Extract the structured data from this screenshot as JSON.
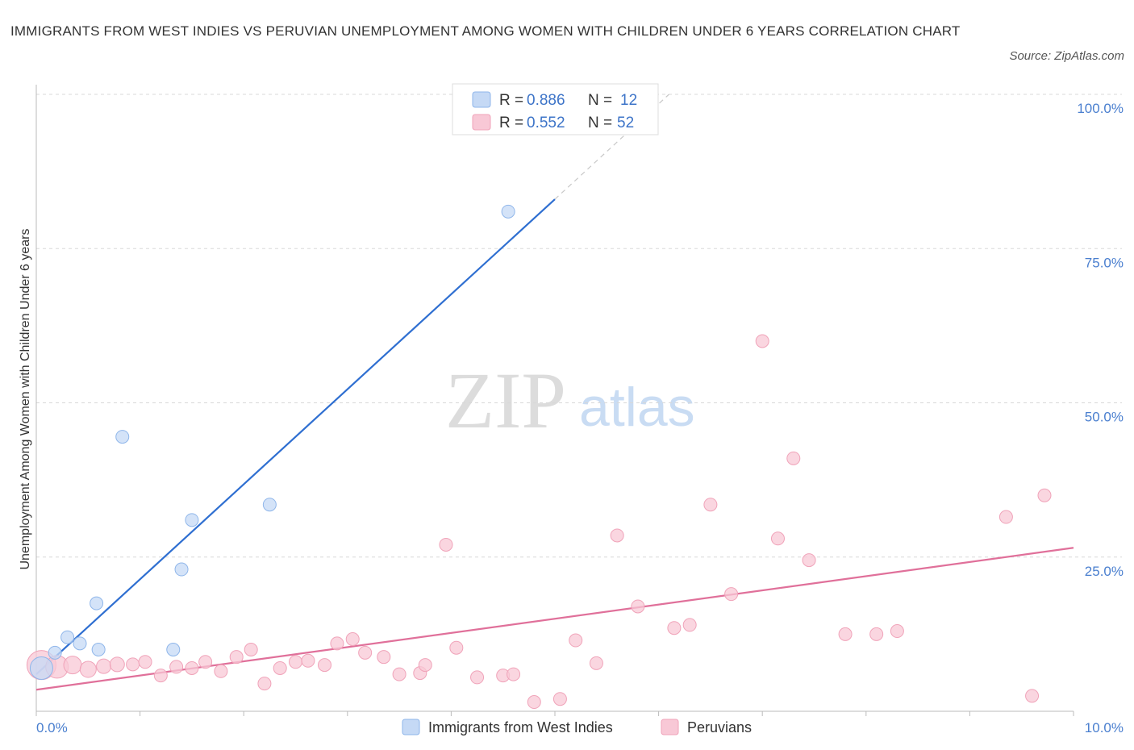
{
  "header": {
    "title": "IMMIGRANTS FROM WEST INDIES VS PERUVIAN UNEMPLOYMENT AMONG WOMEN WITH CHILDREN UNDER 6 YEARS CORRELATION CHART",
    "source": "Source: ZipAtlas.com"
  },
  "watermark": {
    "zip": "ZIP",
    "atlas": "atlas"
  },
  "chart_data": {
    "type": "scatter",
    "title": "IMMIGRANTS FROM WEST INDIES VS PERUVIAN UNEMPLOYMENT AMONG WOMEN WITH CHILDREN UNDER 6 YEARS CORRELATION CHART",
    "xlabel": "",
    "ylabel": "Unemployment Among Women with Children Under 6 years",
    "xlim": [
      0,
      10
    ],
    "ylim": [
      0,
      100
    ],
    "x_tick_labels": {
      "left": "0.0%",
      "right": "10.0%"
    },
    "y_ticks": [
      {
        "value": 100,
        "label": "100.0%"
      },
      {
        "value": 75,
        "label": "75.0%"
      },
      {
        "value": 50,
        "label": "50.0%"
      },
      {
        "value": 25,
        "label": "25.0%"
      }
    ],
    "grid": true,
    "legend": {
      "placement": "top-center",
      "entries": [
        {
          "r_label": "R =",
          "r_value": "0.886",
          "n_label": "N =",
          "n_value": "12"
        },
        {
          "r_label": "R =",
          "r_value": "0.552",
          "n_label": "N =",
          "n_value": "52"
        }
      ]
    },
    "series": [
      {
        "name": "Immigrants from West Indies",
        "color": "#8fb6ea",
        "fill": "#c5d9f5",
        "line_color": "#2f6fd1",
        "trend": {
          "x0": 0.0,
          "y0": 6.0,
          "x1": 5.0,
          "y1": 83.0,
          "dash_to_x": 6.1,
          "dash_to_y": 100.0
        },
        "points": [
          {
            "x": 0.05,
            "y": 7.0,
            "size": 14
          },
          {
            "x": 0.18,
            "y": 9.5,
            "size": 8
          },
          {
            "x": 0.3,
            "y": 12.0,
            "size": 8
          },
          {
            "x": 0.42,
            "y": 11.0,
            "size": 8
          },
          {
            "x": 0.58,
            "y": 17.5,
            "size": 8
          },
          {
            "x": 0.6,
            "y": 10.0,
            "size": 8
          },
          {
            "x": 0.83,
            "y": 44.5,
            "size": 8
          },
          {
            "x": 1.32,
            "y": 10.0,
            "size": 8
          },
          {
            "x": 1.4,
            "y": 23.0,
            "size": 8
          },
          {
            "x": 1.5,
            "y": 31.0,
            "size": 8
          },
          {
            "x": 2.25,
            "y": 33.5,
            "size": 8
          },
          {
            "x": 4.55,
            "y": 81.0,
            "size": 8
          }
        ]
      },
      {
        "name": "Peruvians",
        "color": "#f0a3b9",
        "fill": "#f8c8d6",
        "line_color": "#e0709a",
        "trend": {
          "x0": 0.0,
          "y0": 3.5,
          "x1": 10.0,
          "y1": 26.5
        },
        "points": [
          {
            "x": 0.05,
            "y": 7.5,
            "size": 18
          },
          {
            "x": 0.2,
            "y": 7.2,
            "size": 14
          },
          {
            "x": 0.35,
            "y": 7.5,
            "size": 11
          },
          {
            "x": 0.5,
            "y": 6.8,
            "size": 10
          },
          {
            "x": 0.65,
            "y": 7.3,
            "size": 9
          },
          {
            "x": 0.78,
            "y": 7.6,
            "size": 9
          },
          {
            "x": 0.93,
            "y": 7.6,
            "size": 8
          },
          {
            "x": 1.05,
            "y": 8.0,
            "size": 8
          },
          {
            "x": 1.2,
            "y": 5.8,
            "size": 8
          },
          {
            "x": 1.35,
            "y": 7.2,
            "size": 8
          },
          {
            "x": 1.5,
            "y": 7.0,
            "size": 8
          },
          {
            "x": 1.63,
            "y": 8.0,
            "size": 8
          },
          {
            "x": 1.78,
            "y": 6.5,
            "size": 8
          },
          {
            "x": 1.93,
            "y": 8.8,
            "size": 8
          },
          {
            "x": 2.07,
            "y": 10.0,
            "size": 8
          },
          {
            "x": 2.2,
            "y": 4.5,
            "size": 8
          },
          {
            "x": 2.35,
            "y": 7.0,
            "size": 8
          },
          {
            "x": 2.5,
            "y": 8.0,
            "size": 8
          },
          {
            "x": 2.62,
            "y": 8.2,
            "size": 8
          },
          {
            "x": 2.78,
            "y": 7.5,
            "size": 8
          },
          {
            "x": 2.9,
            "y": 11.0,
            "size": 8
          },
          {
            "x": 3.05,
            "y": 11.7,
            "size": 8
          },
          {
            "x": 3.17,
            "y": 9.5,
            "size": 8
          },
          {
            "x": 3.35,
            "y": 8.8,
            "size": 8
          },
          {
            "x": 3.5,
            "y": 6.0,
            "size": 8
          },
          {
            "x": 3.7,
            "y": 6.2,
            "size": 8
          },
          {
            "x": 3.75,
            "y": 7.5,
            "size": 8
          },
          {
            "x": 3.95,
            "y": 27.0,
            "size": 8
          },
          {
            "x": 4.05,
            "y": 10.3,
            "size": 8
          },
          {
            "x": 4.25,
            "y": 5.5,
            "size": 8
          },
          {
            "x": 4.5,
            "y": 5.8,
            "size": 8
          },
          {
            "x": 4.6,
            "y": 6.0,
            "size": 8
          },
          {
            "x": 4.8,
            "y": 1.5,
            "size": 8
          },
          {
            "x": 5.05,
            "y": 2.0,
            "size": 8
          },
          {
            "x": 5.2,
            "y": 11.5,
            "size": 8
          },
          {
            "x": 5.4,
            "y": 7.8,
            "size": 8
          },
          {
            "x": 5.6,
            "y": 28.5,
            "size": 8
          },
          {
            "x": 5.8,
            "y": 17.0,
            "size": 8
          },
          {
            "x": 6.15,
            "y": 13.5,
            "size": 8
          },
          {
            "x": 6.3,
            "y": 14.0,
            "size": 8
          },
          {
            "x": 6.5,
            "y": 33.5,
            "size": 8
          },
          {
            "x": 6.7,
            "y": 19.0,
            "size": 8
          },
          {
            "x": 7.0,
            "y": 60.0,
            "size": 8
          },
          {
            "x": 7.15,
            "y": 28.0,
            "size": 8
          },
          {
            "x": 7.3,
            "y": 41.0,
            "size": 8
          },
          {
            "x": 7.45,
            "y": 24.5,
            "size": 8
          },
          {
            "x": 7.8,
            "y": 12.5,
            "size": 8
          },
          {
            "x": 8.1,
            "y": 12.5,
            "size": 8
          },
          {
            "x": 8.3,
            "y": 13.0,
            "size": 8
          },
          {
            "x": 9.35,
            "y": 31.5,
            "size": 8
          },
          {
            "x": 9.6,
            "y": 2.5,
            "size": 8
          },
          {
            "x": 9.72,
            "y": 35.0,
            "size": 8
          }
        ]
      }
    ]
  }
}
